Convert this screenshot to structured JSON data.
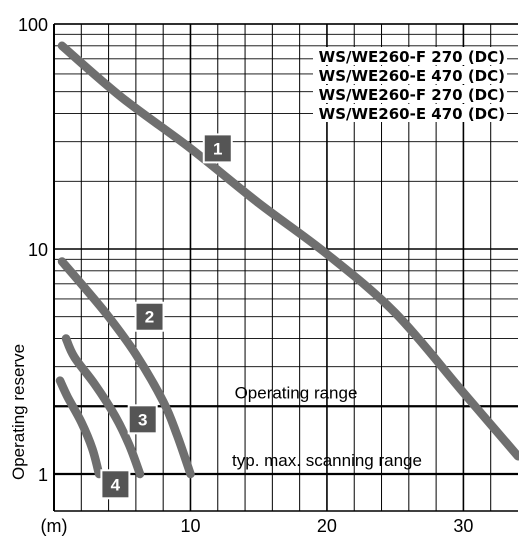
{
  "chart_data": {
    "type": "line",
    "ylabel": "Operating reserve",
    "xlabel": "",
    "x_unit_label": "(m)",
    "x_ticks": [
      10,
      20,
      30
    ],
    "x_tick_labels": [
      "10",
      "20",
      "30"
    ],
    "xlim": [
      0,
      34
    ],
    "y_ticks": [
      1,
      10,
      100
    ],
    "y_tick_labels": [
      "1",
      "10",
      "100"
    ],
    "ylim": [
      0.85,
      100
    ],
    "y_scale": "log",
    "grid": true,
    "legend_position": "top-right",
    "legend_entries": [
      "WS/WE260-F 270 (DC)",
      "WS/WE260-E 470 (DC)",
      "WS/WE260-F 270 (DC)",
      "WS/WE260-E 470 (DC)"
    ],
    "bands": [
      {
        "label": "Operating range",
        "y": 2
      },
      {
        "label": "typ. max. scanning range",
        "y": 1
      }
    ],
    "series": [
      {
        "label": "1",
        "x": [
          0,
          5,
          10,
          15,
          20,
          25,
          30,
          34
        ],
        "y": [
          80,
          47,
          28,
          16,
          9.5,
          5.2,
          2.3,
          1.2
        ]
      },
      {
        "label": "2",
        "x": [
          0,
          2,
          4,
          6,
          8,
          9,
          10
        ],
        "y": [
          8.8,
          7.0,
          5.0,
          3.4,
          2.1,
          1.5,
          1.0
        ]
      },
      {
        "label": "3",
        "x": [
          0,
          1.5,
          3,
          4.5,
          5.5,
          6.3
        ],
        "y": [
          4.0,
          3.3,
          2.5,
          1.8,
          1.35,
          1.0
        ]
      },
      {
        "label": "4",
        "x": [
          0,
          1,
          2,
          2.8,
          3.3
        ],
        "y": [
          2.6,
          2.2,
          1.7,
          1.3,
          1.0
        ]
      }
    ],
    "series_label_pos": [
      {
        "x": 12.0,
        "y": 28
      },
      {
        "x": 7.0,
        "y": 5.0
      },
      {
        "x": 6.5,
        "y": 1.75
      },
      {
        "x": 4.5,
        "y": 0.9
      }
    ]
  }
}
